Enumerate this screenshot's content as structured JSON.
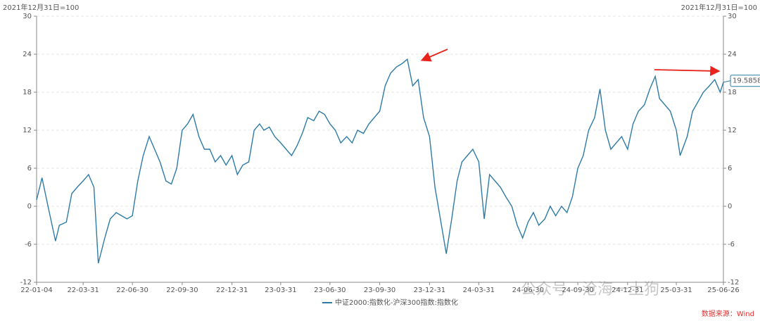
{
  "chart_data": {
    "type": "line",
    "y_label": "2021年12月31日=100",
    "y2_label": "2021年12月31日=100",
    "x": [
      "22-01-04",
      "22-01-14",
      "22-01-25",
      "22-02-08",
      "22-02-15",
      "22-02-28",
      "22-03-10",
      "22-03-20",
      "22-03-31",
      "22-04-10",
      "22-04-20",
      "22-04-28",
      "22-05-10",
      "22-05-20",
      "22-05-31",
      "22-06-10",
      "22-06-20",
      "22-06-30",
      "22-07-10",
      "22-07-20",
      "22-07-31",
      "22-08-10",
      "22-08-20",
      "22-08-31",
      "22-09-10",
      "22-09-20",
      "22-09-30",
      "22-10-10",
      "22-10-20",
      "22-10-31",
      "22-11-10",
      "22-11-20",
      "22-11-30",
      "22-12-10",
      "22-12-20",
      "22-12-31",
      "23-01-10",
      "23-01-20",
      "23-01-31",
      "23-02-10",
      "23-02-20",
      "23-02-28",
      "23-03-10",
      "23-03-20",
      "23-03-31",
      "23-04-10",
      "23-04-20",
      "23-04-30",
      "23-05-10",
      "23-05-20",
      "23-05-31",
      "23-06-10",
      "23-06-20",
      "23-06-30",
      "23-07-10",
      "23-07-20",
      "23-07-31",
      "23-08-10",
      "23-08-20",
      "23-08-31",
      "23-09-10",
      "23-09-20",
      "23-09-30",
      "23-10-10",
      "23-10-20",
      "23-10-31",
      "23-11-10",
      "23-11-20",
      "23-11-30",
      "23-12-10",
      "23-12-20",
      "23-12-31",
      "24-01-10",
      "24-01-20",
      "24-01-31",
      "24-02-10",
      "24-02-20",
      "24-02-29",
      "24-03-10",
      "24-03-20",
      "24-03-31",
      "24-04-10",
      "24-04-20",
      "24-04-30",
      "24-05-10",
      "24-05-20",
      "24-05-31",
      "24-06-10",
      "24-06-20",
      "24-06-30",
      "24-07-10",
      "24-07-20",
      "24-07-31",
      "24-08-10",
      "24-08-20",
      "24-08-31",
      "24-09-10",
      "24-09-20",
      "24-09-30",
      "24-10-10",
      "24-10-20",
      "24-10-31",
      "24-11-10",
      "24-11-20",
      "24-11-30",
      "24-12-10",
      "24-12-20",
      "24-12-31",
      "25-01-10",
      "25-01-20",
      "25-01-31",
      "25-02-10",
      "25-02-20",
      "25-02-28",
      "25-03-10",
      "25-03-20",
      "25-03-31",
      "25-04-07",
      "25-04-20",
      "25-04-30",
      "25-05-10",
      "25-05-20",
      "25-05-31",
      "25-06-10",
      "25-06-20",
      "25-06-26"
    ],
    "series": [
      {
        "name": "中证2000:指数化-沪深300指数:指数化",
        "color": "#2e7ba6",
        "values": [
          1,
          4.5,
          0,
          -5.5,
          -3,
          -2.5,
          2,
          3,
          4,
          5,
          3,
          -9,
          -5,
          -2,
          -1,
          -1.5,
          -2,
          -1.5,
          4,
          8,
          11,
          9,
          7,
          4,
          3.5,
          6,
          12,
          13,
          14.5,
          11,
          9,
          9,
          7,
          8,
          6.5,
          8,
          5,
          6.5,
          7,
          12,
          13,
          12,
          12.5,
          11,
          10,
          9,
          8,
          9.5,
          11.5,
          14,
          13.5,
          15,
          14.5,
          13,
          12,
          10,
          11,
          10,
          12,
          11.5,
          13,
          14,
          15,
          19,
          21,
          22,
          22.5,
          23.2,
          19,
          20,
          14,
          11,
          3,
          -2,
          -7.5,
          -2,
          4,
          7,
          8,
          9,
          7,
          -2,
          5,
          4,
          3,
          1.5,
          0,
          -3,
          -5,
          -2.5,
          -1,
          -3,
          -2,
          0,
          -1.5,
          0,
          -1,
          1.5,
          6,
          8,
          12,
          14,
          18.5,
          12,
          9,
          10,
          11,
          9,
          13,
          15,
          16,
          18.5,
          20.5,
          17,
          16,
          15,
          12,
          8,
          11,
          15,
          16.5,
          18,
          19,
          20,
          18,
          19.5858
        ]
      }
    ],
    "xlim": [
      "22-01-04",
      "25-06-26"
    ],
    "xticks": [
      "22-01-04",
      "22-03-31",
      "22-06-30",
      "22-09-30",
      "22-12-31",
      "23-03-31",
      "23-06-30",
      "23-09-30",
      "23-12-31",
      "24-03-31",
      "24-06-30",
      "24-09-30",
      "24-12-31",
      "25-03-31",
      "25-06-26"
    ],
    "ylim": [
      -12,
      30
    ],
    "yticks": [
      -12,
      -6,
      0,
      6,
      12,
      18,
      24,
      30
    ],
    "y2lim": [
      -12,
      30
    ],
    "y2ticks": [
      -12,
      -6,
      0,
      6,
      12,
      18,
      24,
      30
    ],
    "grid": true,
    "annotations": [
      "19.5858"
    ],
    "source": "数据来源：Wind",
    "watermark": "公众号 · 沧海一土狗"
  }
}
